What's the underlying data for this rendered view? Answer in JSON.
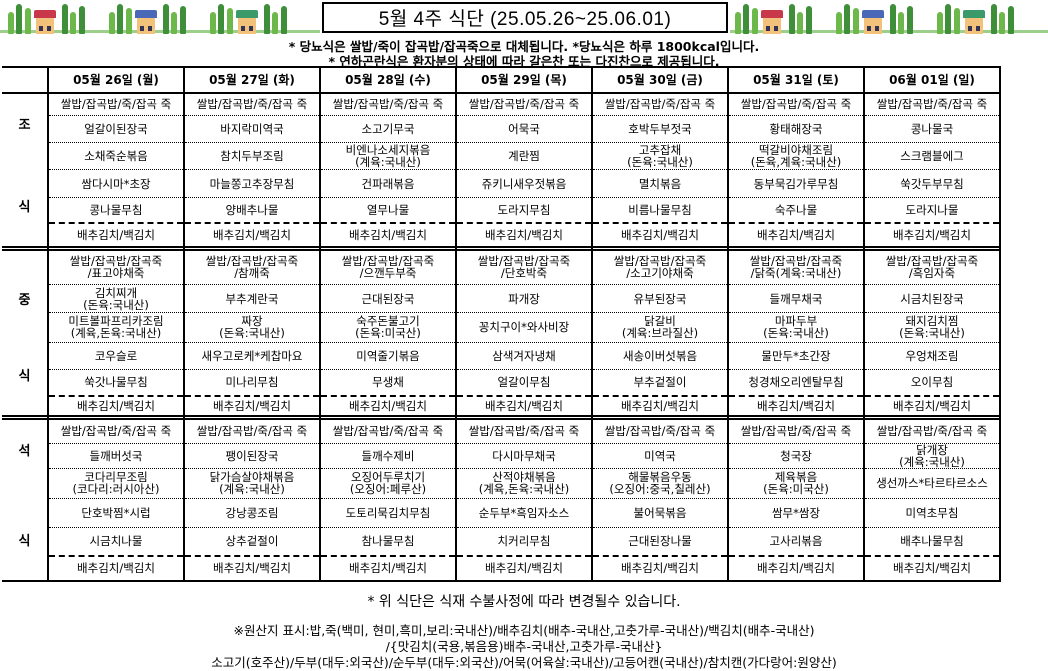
{
  "title": "5월 4주 식단 (25.05.26~25.06.01)",
  "notices": [
    "* 당뇨식은 쌀밥/죽이 잡곡밥/잡곡죽으로 대체됩니다. *당뇨식은 하루 1800kcal입니다.",
    "* 연하곤란식은 환자분의 상태에 따라 갈은찬 또는 다진찬으로 제공됩니다."
  ],
  "days": [
    "05월 26일 (월)",
    "05월 27일 (화)",
    "05월 28일 (수)",
    "05월 29일 (목)",
    "05월 30일 (금)",
    "05월 31일 (토)",
    "06월 01일 (일)"
  ],
  "meals": [
    {
      "label_top": "조",
      "label_bottom": "식",
      "rows": [
        [
          "쌀밥/잡곡밥/죽/잡곡 죽",
          "쌀밥/잡곡밥/죽/잡곡 죽",
          "쌀밥/잡곡밥/죽/잡곡 죽",
          "쌀밥/잡곡밥/죽/잡곡 죽",
          "쌀밥/잡곡밥/죽/잡곡 죽",
          "쌀밥/잡곡밥/죽/잡곡 죽",
          "쌀밥/잡곡밥/죽/잡곡 죽"
        ],
        [
          "얼갈이된장국",
          "바지락미역국",
          "소고기무국",
          "어묵국",
          "호박두부젓국",
          "황태해장국",
          "콩나물국"
        ],
        [
          "소채죽순볶음",
          "참치두부조림",
          "비엔나소세지볶음\n(계육:국내산)",
          "계란찜",
          "고추잡채\n(돈육:국내산)",
          "떡갈비야채조림\n(돈육,계육:국내산)",
          "스크램블에그"
        ],
        [
          "쌈다시마*초장",
          "마늘쫑고추장무침",
          "건파래볶음",
          "쥬키니새우젓볶음",
          "멸치볶음",
          "동부묵김가루무침",
          "쑥갓두부무침"
        ],
        [
          "콩나물무침",
          "양배추나물",
          "열무나물",
          "도라지무침",
          "비름나물무침",
          "숙주나물",
          "도라지나물"
        ],
        [
          "배추김치/백김치",
          "배추김치/백김치",
          "배추김치/백김치",
          "배추김치/백김치",
          "배추김치/백김치",
          "배추김치/백김치",
          "배추김치/백김치"
        ]
      ]
    },
    {
      "label_top": "중",
      "label_bottom": "식",
      "rows": [
        [
          "쌀밥/잡곡밥/잡곡죽\n/표고야채죽",
          "쌀밥/잡곡밥/잡곡죽\n/참깨죽",
          "쌀밥/잡곡밥/잡곡죽\n/으깬두부죽",
          "쌀밥/잡곡밥/잡곡죽\n/단호박죽",
          "쌀밥/잡곡밥/잡곡죽\n/소고기야채죽",
          "쌀밥/잡곡밥/잡곡죽\n/닭죽(계육:국내산)",
          "쌀밥/잡곡밥/잡곡죽\n/흑임자죽"
        ],
        [
          "김치찌개\n(돈육:국내산)",
          "부추계란국",
          "근대된장국",
          "파개장",
          "유부된장국",
          "들깨무채국",
          "시금치된장국"
        ],
        [
          "미트볼파프리카조림\n(계육,돈육:국내산)",
          "짜장\n(돈육:국내산)",
          "숙주돈불고기\n(돈육:미국산)",
          "꽁치구이*와사비장",
          "닭갈비\n(계육:브라질산)",
          "마파두부\n(돈육:국내산)",
          "돼지김치찜\n(돈육:국내산)"
        ],
        [
          "코우슬로",
          "새우고로케*케찹마요",
          "미역줄기볶음",
          "삼색겨자냉채",
          "새송이버섯볶음",
          "물만두*초간장",
          "우엉채조림"
        ],
        [
          "쑥갓나물무침",
          "미나리무침",
          "무생채",
          "얼갈이무침",
          "부추겉절이",
          "청경채오리엔탈무침",
          "오이무침"
        ],
        [
          "배추김치/백김치",
          "배추김치/백김치",
          "배추김치/백김치",
          "배추김치/백김치",
          "배추김치/백김치",
          "배추김치/백김치",
          "배추김치/백김치"
        ]
      ]
    },
    {
      "label_top": "석",
      "label_bottom": "식",
      "rows": [
        [
          "쌀밥/잡곡밥/죽/잡곡 죽",
          "쌀밥/잡곡밥/죽/잡곡 죽",
          "쌀밥/잡곡밥/죽/잡곡 죽",
          "쌀밥/잡곡밥/죽/잡곡 죽",
          "쌀밥/잡곡밥/죽/잡곡 죽",
          "쌀밥/잡곡밥/죽/잡곡 죽",
          "쌀밥/잡곡밥/죽/잡곡 죽"
        ],
        [
          "들깨버섯국",
          "팽이된장국",
          "들깨수제비",
          "다시마무채국",
          "미역국",
          "청국장",
          "닭개장\n(계육:국내산)"
        ],
        [
          "코다리무조림\n(코다리:러시아산)",
          "닭가슴살야채볶음\n(계육:국내산)",
          "오징어두루치기\n(오징어:페루산)",
          "산적야채볶음\n(계육,돈육:국내산)",
          "해물볶음우동\n(오징어:중국,칠레산)",
          "제육볶음\n(돈육:미국산)",
          "생선까스*타르타르소스"
        ],
        [
          "단호박찜*시럽",
          "강낭콩조림",
          "도토리묵김치무침",
          "순두부*흑임자소스",
          "불어묵볶음",
          "쌈무*쌈장",
          "미역초무침"
        ],
        [
          "시금치나물",
          "상추겉절이",
          "참나물무침",
          "치커리무침",
          "근대된장나물",
          "고사리볶음",
          "배추나물무침"
        ],
        [
          "배추김치/백김치",
          "배추김치/백김치",
          "배추김치/백김치",
          "배추김치/백김치",
          "배추김치/백김치",
          "배추김치/백김치",
          "배추김치/백김치"
        ]
      ]
    }
  ],
  "footer": {
    "change_notice": "* 위 식단은 식재 수불사정에 따라 변경될수 있습니다.",
    "origin_lines": [
      "※원산지 표시:밥,죽(백미, 현미,흑미,보리:국내산)/배추김치(배추-국내산,고춧가루-국내산)/백김치(배추-국내산)",
      "/{맛김치(국용,볶음용)배추-국내산,고춧가루-국내산}",
      "소고기(호주산)/두부(대두:외국산)/순두부(대두:외국산)/어묵(어육살:국내산)/고등어캔(국내산)/참치캔(가다랑어:원양산)"
    ]
  },
  "colors": {
    "roofs": [
      "#c8384a",
      "#4a68b8",
      "#3a9a6a"
    ],
    "ground": "#9ccf8a"
  }
}
